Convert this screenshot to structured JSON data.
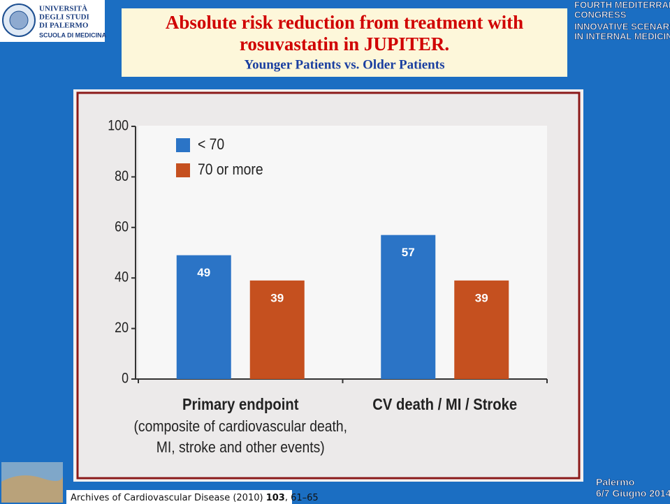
{
  "logo": {
    "lines": [
      "UNIVERSITÀ",
      "DEGLI STUDI",
      "DI PALERMO"
    ],
    "school": "SCUOLA DI MEDICINA"
  },
  "header": {
    "title_lines": [
      "Absolute risk reduction from treatment with",
      "rosuvastatin  in JUPITER."
    ],
    "subtitle": "Younger Patients vs. Older Patients"
  },
  "congress": {
    "lines": [
      "FOURTH MEDITERRANEAN",
      "CONGRESS",
      "INNOVATIVE SCENARIO",
      "IN INTERNAL MEDICINE"
    ]
  },
  "chart_data": {
    "type": "bar",
    "categories": [
      "Primary endpoint",
      "CV death / MI / Stroke"
    ],
    "annotations": [
      "(composite of cardiovascular death,",
      "MI, stroke and other events)"
    ],
    "series": [
      {
        "name": "< 70",
        "color": "#2b74c6",
        "values": [
          49,
          57
        ]
      },
      {
        "name": "70 or more",
        "color": "#c5501f",
        "values": [
          39,
          39
        ]
      }
    ],
    "ylim": [
      0,
      100
    ],
    "yticks": [
      0,
      20,
      40,
      60,
      80,
      100
    ],
    "legend": "upper left"
  },
  "source": {
    "journal": "Archives of Cardiovascular Disease (2010)",
    "volume": "103",
    "pages": "61–65"
  },
  "event": {
    "city": "Palermo",
    "date": "6/7 Giugno 2014"
  }
}
